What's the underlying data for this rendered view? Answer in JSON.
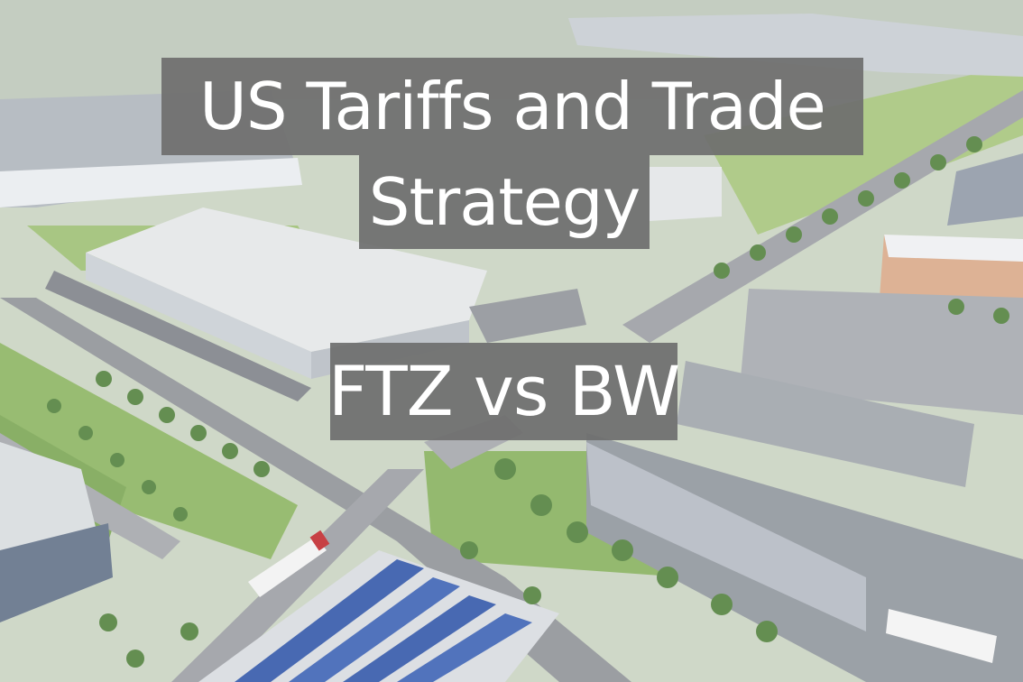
{
  "title": {
    "line1": "US Tariffs and Trade",
    "line2": "Strategy"
  },
  "subtitle": "FTZ vs BW",
  "colors": {
    "overlay": "#6e6e6e",
    "text": "#ffffff",
    "grass": "#7fa85a",
    "roof": "#e4e6e8",
    "road": "#8e9196",
    "solar": "#2f55a8"
  }
}
